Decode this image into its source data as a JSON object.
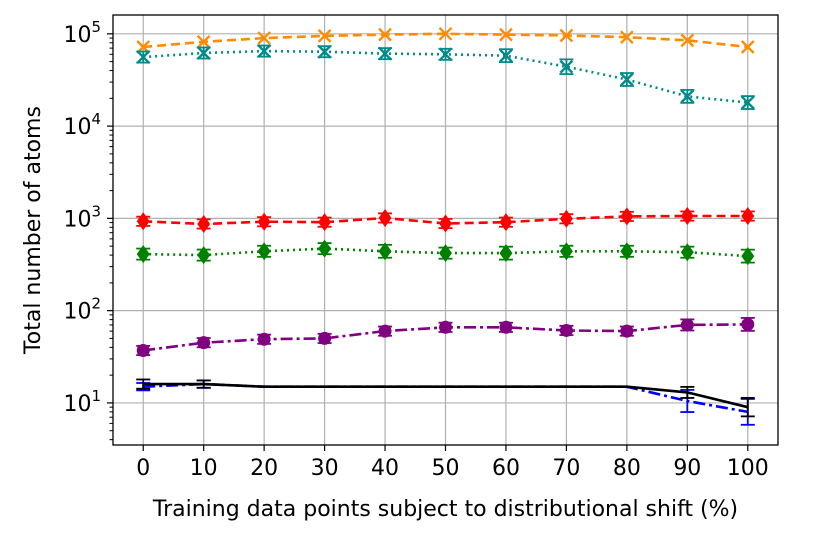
{
  "chart_data": {
    "type": "line",
    "xlabel": "Training data points subject to distributional shift (%)",
    "ylabel": "Total number of atoms",
    "yscale": "log",
    "xlim": [
      -5,
      105
    ],
    "ylim": [
      3.5,
      160000
    ],
    "grid": true,
    "x": [
      0,
      10,
      20,
      30,
      40,
      50,
      60,
      70,
      80,
      90,
      100
    ],
    "x_tick_labels": [
      "0",
      "10",
      "20",
      "30",
      "40",
      "50",
      "60",
      "70",
      "80",
      "90",
      "100"
    ],
    "y_ticks": [
      {
        "value": 10,
        "base": "10",
        "exp": "1"
      },
      {
        "value": 100,
        "base": "10",
        "exp": "2"
      },
      {
        "value": 1000,
        "base": "10",
        "exp": "3"
      },
      {
        "value": 10000,
        "base": "10",
        "exp": "4"
      },
      {
        "value": 100000,
        "base": "10",
        "exp": "5"
      }
    ],
    "series": [
      {
        "color": "#ff8c00",
        "dash": "9,5",
        "marker": "x",
        "errbars": false,
        "values": [
          72000,
          82000,
          90000,
          95000,
          98000,
          100000,
          98000,
          96000,
          92000,
          85000,
          72000
        ]
      },
      {
        "color": "#008b8b",
        "dash": "2,4",
        "marker": "x",
        "errbars": true,
        "values": [
          56000,
          62000,
          65000,
          64000,
          61000,
          60000,
          58000,
          44000,
          32000,
          21000,
          18000
        ],
        "errors": [
          0.06,
          0.06,
          0.06,
          0.06,
          0.06,
          0.06,
          0.07,
          0.08,
          0.07,
          0.07,
          0.07
        ]
      },
      {
        "color": "#ff0000",
        "dash": "9,5",
        "marker": "diamond",
        "errbars": true,
        "values": [
          930,
          870,
          920,
          910,
          1010,
          880,
          910,
          990,
          1050,
          1060,
          1060
        ],
        "errors": [
          0.05,
          0.05,
          0.05,
          0.05,
          0.05,
          0.05,
          0.05,
          0.05,
          0.05,
          0.05,
          0.05
        ]
      },
      {
        "color": "#008000",
        "dash": "2,4",
        "marker": "diamond",
        "errbars": true,
        "values": [
          410,
          400,
          440,
          470,
          440,
          420,
          420,
          440,
          440,
          430,
          390
        ],
        "errors": [
          0.06,
          0.06,
          0.06,
          0.06,
          0.07,
          0.06,
          0.07,
          0.06,
          0.06,
          0.06,
          0.07
        ]
      },
      {
        "color": "#800080",
        "dash": "12,4,3,4",
        "marker": "circle",
        "errbars": true,
        "values": [
          37,
          45,
          49,
          50,
          60,
          66,
          66,
          61,
          60,
          70,
          71
        ],
        "errors": [
          0.05,
          0.05,
          0.05,
          0.05,
          0.05,
          0.05,
          0.05,
          0.05,
          0.05,
          0.06,
          0.07
        ]
      },
      {
        "color": "#0000ff",
        "dash": "12,4,3,4",
        "marker": "none",
        "errbars": true,
        "values": [
          15,
          16,
          15,
          15,
          15,
          15,
          15,
          15,
          15,
          10.5,
          8
        ],
        "errors": [
          0.04,
          0.04,
          0,
          0,
          0,
          0,
          0,
          0,
          0,
          0.12,
          0.14
        ]
      },
      {
        "color": "#000000",
        "dash": "",
        "marker": "none",
        "errbars": true,
        "values": [
          16,
          16,
          15,
          15,
          15,
          15,
          15,
          15,
          15,
          13,
          9
        ],
        "errors": [
          0.05,
          0.04,
          0,
          0,
          0,
          0,
          0,
          0,
          0,
          0.06,
          0.1
        ]
      }
    ]
  }
}
